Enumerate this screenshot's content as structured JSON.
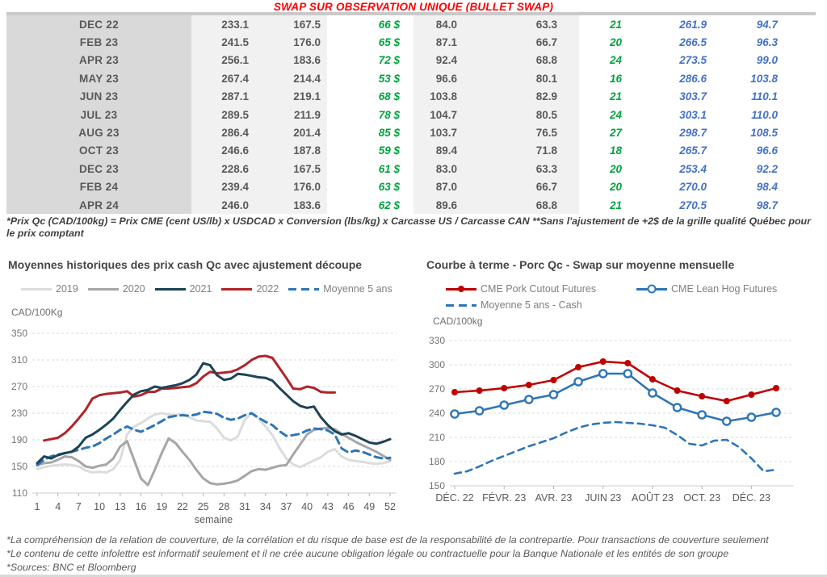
{
  "title": "SWAP SUR OBSERVATION UNIQUE (BULLET SWAP)",
  "colors": {
    "title_red": "#ff0000",
    "gain_green": "#00a33e",
    "futures_blue": "#4472c4",
    "table_text": "#595959",
    "month_col_bg": "#d9d9d9",
    "data_col_bg": "#f1f1f1"
  },
  "table": {
    "rows": [
      [
        "DEC 22",
        "233.1",
        "167.5",
        "66 $",
        "84.0",
        "63.3",
        "21",
        "261.9",
        "94.7"
      ],
      [
        "FEB 23",
        "241.5",
        "176.0",
        "65 $",
        "87.1",
        "66.7",
        "20",
        "266.5",
        "96.3"
      ],
      [
        "APR 23",
        "256.1",
        "183.6",
        "72 $",
        "92.4",
        "68.8",
        "24",
        "273.5",
        "99.0"
      ],
      [
        "MAY 23",
        "267.4",
        "214.4",
        "53 $",
        "96.6",
        "80.1",
        "16",
        "286.6",
        "103.8"
      ],
      [
        "JUN 23",
        "287.1",
        "219.1",
        "68 $",
        "103.8",
        "82.9",
        "21",
        "303.7",
        "110.1"
      ],
      [
        "JUL 23",
        "289.5",
        "211.9",
        "78 $",
        "104.7",
        "80.5",
        "24",
        "303.1",
        "110.0"
      ],
      [
        "AUG 23",
        "286.4",
        "201.4",
        "85 $",
        "103.7",
        "76.5",
        "27",
        "298.7",
        "108.5"
      ],
      [
        "OCT 23",
        "246.6",
        "187.8",
        "59 $",
        "89.4",
        "71.8",
        "18",
        "265.7",
        "96.6"
      ],
      [
        "DEC 23",
        "228.6",
        "167.5",
        "61 $",
        "83.0",
        "63.3",
        "20",
        "253.4",
        "92.2"
      ],
      [
        "FEB 24",
        "239.4",
        "176.0",
        "63 $",
        "87.0",
        "66.7",
        "20",
        "270.0",
        "98.4"
      ],
      [
        "APR 24",
        "246.0",
        "183.6",
        "62 $",
        "89.6",
        "68.8",
        "21",
        "270.5",
        "98.7"
      ]
    ]
  },
  "table_footnote": "*Prix Qc (CAD/100kg) = Prix CME (cent US/lb) x USDCAD x Conversion (lbs/kg) x Carcasse US / Carcasse CAN **Sans l'ajustement de +2$ de la grille qualité Québec pour le prix comptant",
  "chart_data": [
    {
      "type": "line",
      "title": "Moyennes historiques des prix cash Qc avec ajustement découpe",
      "ylabel": "CAD/100Kg",
      "xlabel": "semaine",
      "ylim": [
        110,
        350
      ],
      "yticks": [
        350,
        310,
        270,
        230,
        190,
        150,
        110
      ],
      "xticks": [
        1,
        4,
        7,
        10,
        13,
        16,
        19,
        22,
        25,
        28,
        31,
        34,
        37,
        40,
        43,
        46,
        49,
        52
      ],
      "grid": true,
      "legend_position": "top",
      "series": [
        {
          "name": "2019",
          "color": "#dcdcdc",
          "dash": false,
          "values": [
            146,
            149,
            151,
            152,
            153,
            152,
            150,
            144,
            141,
            142,
            141,
            146,
            160,
            198,
            210,
            215,
            222,
            228,
            230,
            228,
            227,
            229,
            224,
            219,
            218,
            217,
            207,
            193,
            189,
            195,
            220,
            230,
            222,
            210,
            197,
            178,
            162,
            153,
            149,
            154,
            159,
            164,
            172,
            176,
            165,
            160,
            158,
            157,
            155,
            154,
            155,
            158
          ]
        },
        {
          "name": "2020",
          "color": "#a6a6a6",
          "dash": false,
          "values": [
            152,
            155,
            156,
            160,
            165,
            164,
            158,
            150,
            148,
            151,
            153,
            162,
            180,
            188,
            160,
            132,
            122,
            145,
            170,
            192,
            185,
            172,
            160,
            145,
            132,
            125,
            123,
            124,
            126,
            129,
            136,
            143,
            146,
            145,
            148,
            151,
            152,
            168,
            183,
            198,
            205,
            207,
            208,
            206,
            199,
            193,
            187,
            182,
            177,
            172,
            166,
            160
          ]
        },
        {
          "name": "2021",
          "color": "#1d4356",
          "dash": false,
          "values": [
            155,
            165,
            162,
            167,
            170,
            172,
            180,
            193,
            198,
            205,
            213,
            222,
            235,
            247,
            258,
            263,
            265,
            270,
            268,
            270,
            272,
            275,
            280,
            288,
            305,
            302,
            287,
            280,
            282,
            289,
            288,
            286,
            284,
            283,
            279,
            268,
            258,
            248,
            241,
            238,
            240,
            224,
            212,
            203,
            198,
            200,
            196,
            191,
            186,
            184,
            187,
            191
          ]
        },
        {
          "name": "2022",
          "color": "#b02328",
          "dash": false,
          "x_start": 2,
          "values": [
            189,
            191,
            193,
            200,
            210,
            222,
            235,
            252,
            257,
            259,
            260,
            261,
            263,
            255,
            257,
            262,
            262,
            267,
            267,
            268,
            269,
            270,
            275,
            285,
            292,
            290,
            291,
            292,
            296,
            302,
            310,
            315,
            316,
            313,
            298,
            283,
            267,
            266,
            270,
            268,
            262,
            261,
            261
          ]
        },
        {
          "name": "Moyenne 5 ans",
          "color": "#2e75b6",
          "dash": true,
          "values": [
            152,
            160,
            165,
            168,
            170,
            172,
            175,
            178,
            180,
            185,
            192,
            198,
            205,
            210,
            205,
            202,
            207,
            212,
            218,
            224,
            226,
            227,
            226,
            228,
            232,
            231,
            229,
            223,
            220,
            222,
            227,
            230,
            223,
            217,
            212,
            203,
            196,
            197,
            199,
            204,
            207,
            206,
            204,
            198,
            177,
            171,
            174,
            172,
            168,
            164,
            162,
            163
          ]
        }
      ]
    },
    {
      "type": "line",
      "title": "Courbe à terme - Porc Qc - Swap sur moyenne mensuelle",
      "ylabel": "CAD/100kg",
      "ylim": [
        150,
        330
      ],
      "yticks": [
        330,
        300,
        270,
        240,
        210,
        180,
        150
      ],
      "xticks": [
        0,
        2,
        4,
        6,
        8,
        10,
        12
      ],
      "xtick_labels": [
        "DÉC. 22",
        "FÉVR. 23",
        "AVR. 23",
        "JUIN 23",
        "AOÛT 23",
        "OCT. 23",
        "DÉC. 23"
      ],
      "grid": true,
      "legend_position": "top",
      "series": [
        {
          "name": "CME Pork Cutout Futures",
          "color": "#c00000",
          "marker": "filled",
          "values": [
            266,
            268,
            271,
            275,
            281,
            297,
            304,
            302,
            282,
            268,
            261,
            255,
            263,
            271
          ]
        },
        {
          "name": "CME Lean Hog Futures",
          "color": "#2e75b6",
          "marker": "open",
          "values": [
            239,
            243,
            250,
            257,
            263,
            279,
            289,
            289,
            265,
            247,
            238,
            230,
            235,
            241
          ]
        },
        {
          "name": "Moyenne 5 ans - Cash",
          "color": "#2e75b6",
          "dash": true,
          "x_step": 0.5,
          "values": [
            165,
            168,
            174,
            181,
            187,
            193,
            199,
            204,
            209,
            216,
            222,
            226,
            228,
            229,
            228,
            227,
            225,
            222,
            213,
            202,
            200,
            206,
            207,
            198,
            184,
            168,
            170
          ]
        }
      ]
    }
  ],
  "footer": {
    "lines": [
      "*La compréhension de la relation de couverture, de la corrélation et du risque de base est de la responsabilité de la contrepartie. Pour transactions de couverture seulement",
      "*Le contenu de cette infolettre est informatif seulement et il ne crée aucune obligation légale ou contractuelle pour la Banque Nationale et les entités de son groupe",
      "*Sources: BNC et Bloomberg"
    ]
  }
}
